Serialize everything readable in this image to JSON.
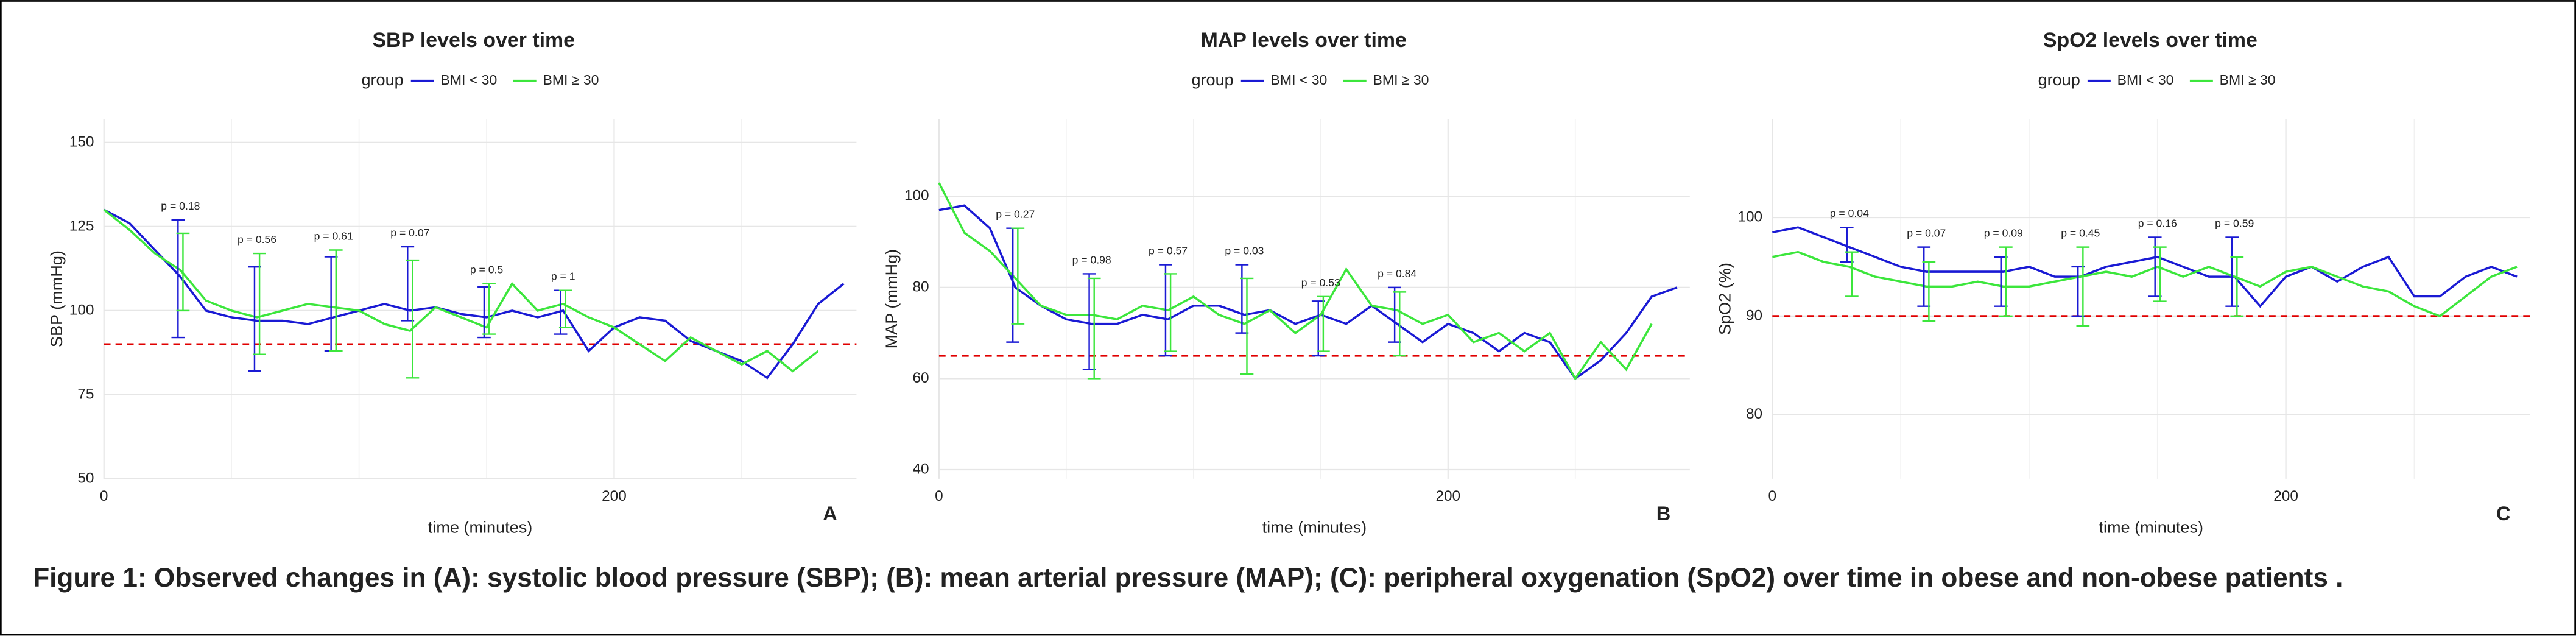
{
  "chart_data": [
    {
      "type": "line",
      "title": "SBP levels over time",
      "legend_title": "group",
      "panel_label": "A",
      "x_label": "time (minutes)",
      "y_label": "SBP (mmHg)",
      "xlim": [
        0,
        295
      ],
      "xticks": [
        0,
        200
      ],
      "x_minor_grid": [
        50,
        100,
        150,
        250
      ],
      "ylim": [
        50,
        157
      ],
      "yticks": [
        50,
        75,
        100,
        125,
        150
      ],
      "grid": true,
      "x": [
        0,
        10,
        20,
        30,
        40,
        50,
        60,
        70,
        80,
        90,
        100,
        110,
        120,
        130,
        140,
        150,
        160,
        170,
        180,
        190,
        200,
        210,
        220,
        230,
        240,
        250,
        260,
        270,
        280,
        290
      ],
      "series": [
        {
          "name": "BMI < 30",
          "color": "#1a1ad4",
          "values": [
            130,
            126,
            118,
            110,
            100,
            98,
            97,
            97,
            96,
            98,
            100,
            102,
            100,
            101,
            99,
            98,
            100,
            98,
            100,
            88,
            95,
            98,
            97,
            91,
            88,
            85,
            80,
            90,
            102,
            108
          ]
        },
        {
          "name": "BMI ≥ 30",
          "color": "#3ce63c",
          "values": [
            130,
            124,
            117,
            112,
            103,
            100,
            98,
            100,
            102,
            101,
            100,
            96,
            94,
            101,
            98,
            95,
            108,
            100,
            102,
            98,
            95,
            90,
            85,
            92,
            88,
            84,
            88,
            82,
            88,
            null
          ]
        }
      ],
      "errorbar_x": [
        30,
        60,
        90,
        120,
        150,
        180
      ],
      "errorbars": [
        {
          "mean": [
            109.5,
            97.5,
            102,
            108,
            99.5,
            99.5
          ],
          "err": [
            17.5,
            15.5,
            14,
            11,
            7.5,
            6.5
          ]
        },
        {
          "mean": [
            111.5,
            102,
            103,
            97.5,
            100.5,
            100.5
          ],
          "err": [
            11.5,
            15,
            15,
            17.5,
            7.5,
            5.5
          ]
        }
      ],
      "annotations": [
        "p = 0.18",
        "p = 0.56",
        "p = 0.61",
        "p = 0.07",
        "p = 0.5",
        "p = 1"
      ],
      "reference_line": {
        "value": 90,
        "color": "#e00000"
      }
    },
    {
      "type": "line",
      "title": "MAP levels over time",
      "legend_title": "group",
      "panel_label": "B",
      "x_label": "time (minutes)",
      "y_label": "MAP (mmHg)",
      "xlim": [
        0,
        295
      ],
      "xticks": [
        0,
        200
      ],
      "x_minor_grid": [
        50,
        100,
        150,
        250
      ],
      "ylim": [
        38,
        117
      ],
      "yticks": [
        40,
        60,
        80,
        100
      ],
      "grid": true,
      "x": [
        0,
        10,
        20,
        30,
        40,
        50,
        60,
        70,
        80,
        90,
        100,
        110,
        120,
        130,
        140,
        150,
        160,
        170,
        180,
        190,
        200,
        210,
        220,
        230,
        240,
        250,
        260,
        270,
        280,
        290
      ],
      "series": [
        {
          "name": "BMI < 30",
          "color": "#1a1ad4",
          "values": [
            97,
            98,
            93,
            80,
            76,
            73,
            72,
            72,
            74,
            73,
            76,
            76,
            74,
            75,
            72,
            74,
            72,
            76,
            72,
            68,
            72,
            70,
            66,
            70,
            68,
            60,
            64,
            70,
            78,
            80
          ]
        },
        {
          "name": "BMI ≥ 30",
          "color": "#3ce63c",
          "values": [
            103,
            92,
            88,
            82,
            76,
            74,
            74,
            73,
            76,
            75,
            78,
            74,
            72,
            75,
            70,
            74,
            84,
            76,
            75,
            72,
            74,
            68,
            70,
            66,
            70,
            60,
            68,
            62,
            72,
            null
          ]
        }
      ],
      "errorbar_x": [
        30,
        60,
        90,
        120,
        150,
        180
      ],
      "errorbars": [
        {
          "mean": [
            80.5,
            72.5,
            75,
            77.5,
            71,
            74
          ],
          "err": [
            12.5,
            10.5,
            10,
            7.5,
            6,
            6
          ]
        },
        {
          "mean": [
            82.5,
            71,
            74.5,
            71.5,
            72,
            72
          ],
          "err": [
            10.5,
            11,
            8.5,
            10.5,
            6,
            7
          ]
        }
      ],
      "annotations": [
        "p = 0.27",
        "p = 0.98",
        "p = 0.57",
        "p = 0.03",
        "p = 0.53",
        "p = 0.84"
      ],
      "reference_line": {
        "value": 65,
        "color": "#e00000"
      }
    },
    {
      "type": "line",
      "title": "SpO2 levels over time",
      "legend_title": "group",
      "panel_label": "C",
      "x_label": "time (minutes)",
      "y_label": "SpO2 (%)",
      "xlim": [
        0,
        295
      ],
      "xticks": [
        0,
        200
      ],
      "x_minor_grid": [
        50,
        100,
        150,
        250
      ],
      "ylim": [
        73.5,
        110
      ],
      "yticks": [
        80,
        90,
        100
      ],
      "grid": true,
      "x": [
        0,
        10,
        20,
        30,
        40,
        50,
        60,
        70,
        80,
        90,
        100,
        110,
        120,
        130,
        140,
        150,
        160,
        170,
        180,
        190,
        200,
        210,
        220,
        230,
        240,
        250,
        260,
        270,
        280,
        290
      ],
      "series": [
        {
          "name": "BMI < 30",
          "color": "#1a1ad4",
          "values": [
            98.5,
            99,
            98,
            97,
            96,
            95,
            94.5,
            94.5,
            94.5,
            94.5,
            95,
            94,
            94,
            95,
            95.5,
            96,
            95,
            94,
            94,
            91,
            94,
            95,
            93.5,
            95,
            96,
            92,
            92,
            94,
            95,
            94
          ]
        },
        {
          "name": "BMI ≥ 30",
          "color": "#3ce63c",
          "values": [
            96,
            96.5,
            95.5,
            95,
            94,
            93.5,
            93,
            93,
            93.5,
            93,
            93,
            93.5,
            94,
            94.5,
            94,
            95,
            94,
            95,
            94,
            93,
            94.5,
            95,
            94,
            93,
            92.5,
            91,
            90,
            92,
            94,
            95
          ]
        }
      ],
      "errorbar_x": [
        30,
        60,
        90,
        120,
        150,
        180
      ],
      "errorbars": [
        {
          "mean": [
            97.25,
            94,
            93.5,
            92.5,
            95,
            94.5
          ],
          "err": [
            1.75,
            3,
            2.5,
            2.5,
            3,
            3.5
          ]
        },
        {
          "mean": [
            94.25,
            92.5,
            93.5,
            93,
            94.25,
            93
          ],
          "err": [
            2.25,
            3,
            3.5,
            4,
            2.75,
            3
          ]
        }
      ],
      "annotations": [
        "p = 0.04",
        "p = 0.07",
        "p = 0.09",
        "p = 0.45",
        "p = 0.16",
        "p = 0.59"
      ],
      "reference_line": {
        "value": 90,
        "color": "#e00000"
      }
    }
  ],
  "caption": "Figure 1: Observed changes in (A): systolic blood pressure (SBP); (B): mean arterial pressure (MAP); (C): peripheral oxygenation (SpO2) over time in obese and non-obese patients ."
}
